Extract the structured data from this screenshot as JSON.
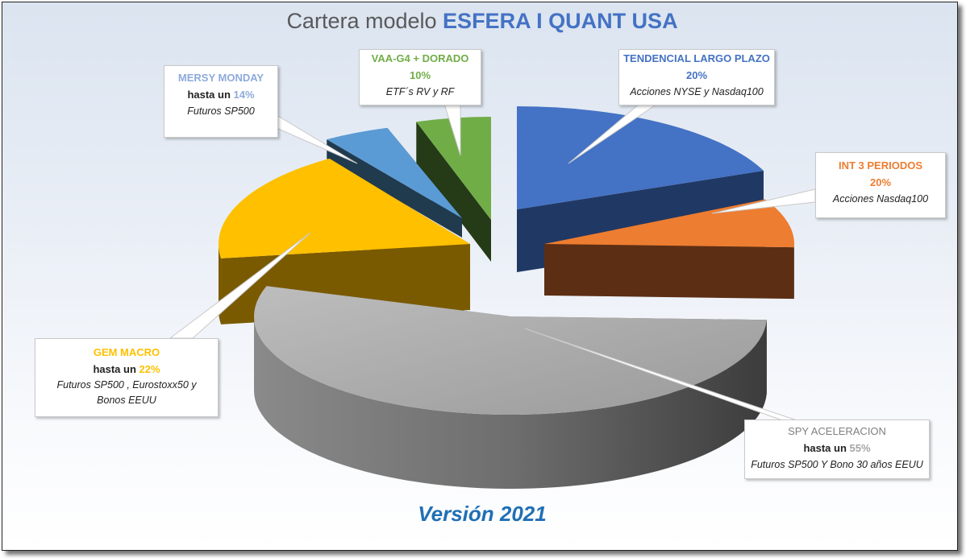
{
  "title": {
    "prefix": "Cartera modelo",
    "highlight": "ESFERA I QUANT USA"
  },
  "footer": "Versión 2021",
  "chart_data": {
    "type": "pie",
    "title": "Cartera modelo ESFERA I QUANT USA",
    "style": "3d-exploded",
    "slices": [
      {
        "name": "TENDENCIAL LARGO PLAZO",
        "prefix": "",
        "value": 20,
        "label": "20%",
        "desc": "Acciones NYSE y Nasdaq100",
        "color": "#4472c4"
      },
      {
        "name": "INT 3 PERIODOS",
        "prefix": "",
        "value": 20,
        "label": "20%",
        "desc": "Acciones Nasdaq100",
        "color": "#ed7d31"
      },
      {
        "name": "SPY ACELERACION",
        "prefix": "hasta un",
        "value": 55,
        "label": "55%",
        "desc": "Futuros SP500 Y Bono 30 años EEUU",
        "color": "#a5a5a5"
      },
      {
        "name": "GEM MACRO",
        "prefix": "hasta un",
        "value": 22,
        "label": "22%",
        "desc": "Futuros SP500 , Eurostoxx50 y Bonos EEUU",
        "color": "#ffc000"
      },
      {
        "name": "MERSY MONDAY",
        "prefix": "hasta un",
        "value": 14,
        "label": "14%",
        "desc": "Futuros SP500",
        "color": "#5b9bd5"
      },
      {
        "name": "VAA-G4 + DORADO",
        "prefix": "",
        "value": 10,
        "label": "10%",
        "desc": "ETF´s RV y RF",
        "color": "#70ad47"
      }
    ]
  }
}
